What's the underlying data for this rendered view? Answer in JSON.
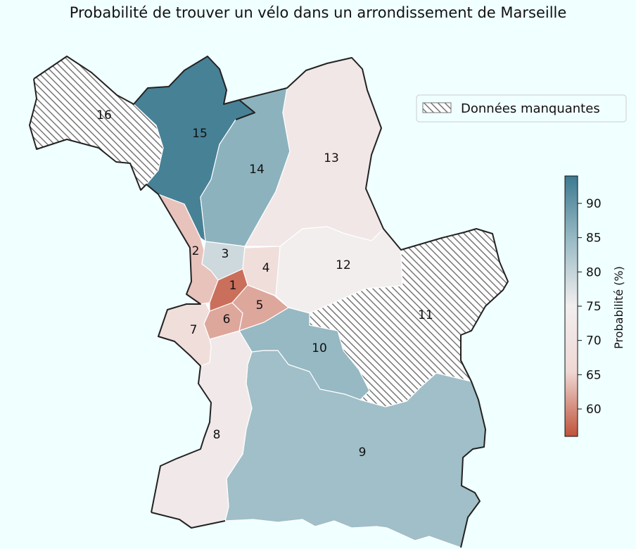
{
  "title": "Probabilité de trouver un vélo dans un arrondissement de Marseille",
  "legend": {
    "label": "Données manquantes",
    "swatch": "hatched-grey"
  },
  "colorbar": {
    "label": "Probabilité (%)",
    "ticks": [
      "90",
      "85",
      "80",
      "75",
      "70",
      "65",
      "60"
    ],
    "colors": [
      "#3d7a90",
      "#9bbcc6",
      "#f2eeee",
      "#efd8d4",
      "#c0533b"
    ],
    "range": [
      56,
      94
    ]
  },
  "colors": {
    "missing_hatch": "#777777",
    "outline": "#222222",
    "background": "#f0ffff"
  },
  "districts": [
    {
      "id": "1",
      "label": "1",
      "probability": 58,
      "missing": false
    },
    {
      "id": "2",
      "label": "2",
      "probability": 64,
      "missing": false
    },
    {
      "id": "3",
      "label": "3",
      "probability": 79,
      "missing": false
    },
    {
      "id": "4",
      "label": "4",
      "probability": 68,
      "missing": false
    },
    {
      "id": "5",
      "label": "5",
      "probability": 62,
      "missing": false
    },
    {
      "id": "6",
      "label": "6",
      "probability": 62,
      "missing": false
    },
    {
      "id": "7",
      "label": "7",
      "probability": 68,
      "missing": false
    },
    {
      "id": "8",
      "label": "8",
      "probability": 73,
      "missing": false
    },
    {
      "id": "9",
      "label": "9",
      "probability": 84,
      "missing": false
    },
    {
      "id": "10",
      "label": "10",
      "probability": 85,
      "missing": false
    },
    {
      "id": "11",
      "label": "11",
      "probability": null,
      "missing": true
    },
    {
      "id": "12",
      "label": "12",
      "probability": 75,
      "missing": false
    },
    {
      "id": "13",
      "label": "13",
      "probability": 72,
      "missing": false
    },
    {
      "id": "14",
      "label": "14",
      "probability": 86,
      "missing": false
    },
    {
      "id": "15",
      "label": "15",
      "probability": 93,
      "missing": false
    },
    {
      "id": "16",
      "label": "16",
      "probability": null,
      "missing": true
    }
  ]
}
